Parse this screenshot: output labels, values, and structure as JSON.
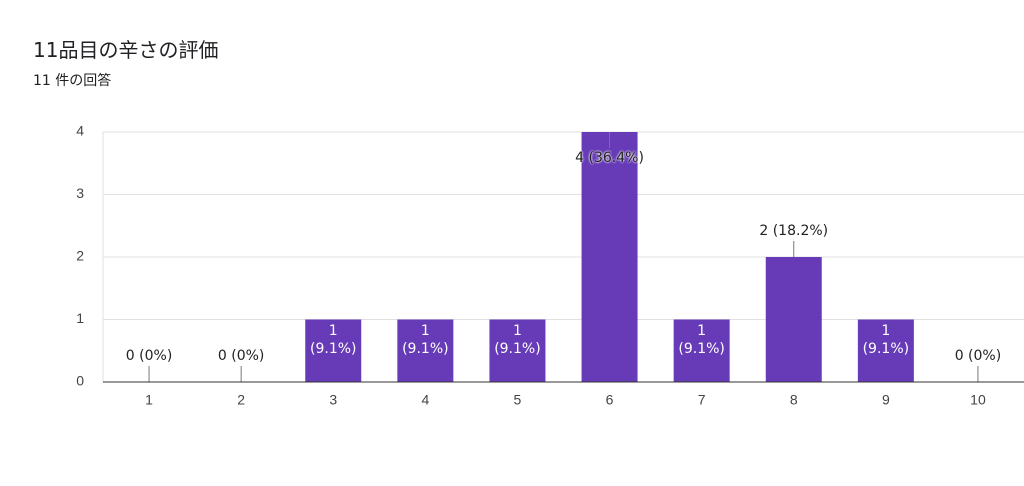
{
  "chart_data": {
    "type": "bar",
    "title": "11品目の辛さの評価",
    "subtitle": "11 件の回答",
    "categories": [
      "1",
      "2",
      "3",
      "4",
      "5",
      "6",
      "7",
      "8",
      "9",
      "10"
    ],
    "values": [
      0,
      0,
      1,
      1,
      1,
      4,
      1,
      2,
      1,
      0
    ],
    "value_labels": [
      "0 (0%)",
      "0 (0%)",
      "1 (9.1%)",
      "1 (9.1%)",
      "1 (9.1%)",
      "4 (36.4%)",
      "1 (9.1%)",
      "2 (18.2%)",
      "1 (9.1%)",
      "0 (0%)"
    ],
    "color": "#673ab7",
    "ylim": [
      0,
      4
    ],
    "yticks": [
      0,
      1,
      2,
      3,
      4
    ],
    "grid": true
  }
}
